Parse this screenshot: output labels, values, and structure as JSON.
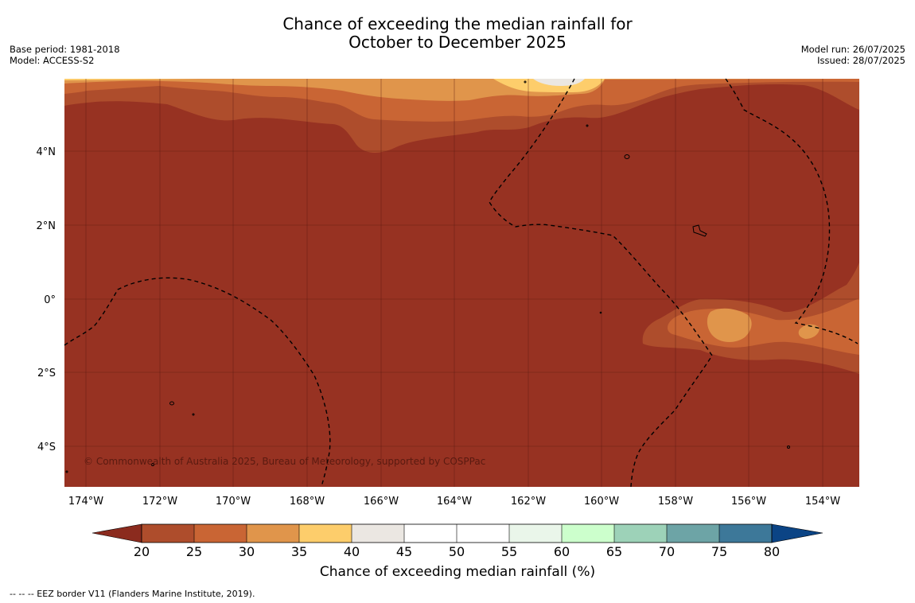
{
  "title": {
    "line1": "Chance of exceeding the median rainfall for",
    "line2": "October to December 2025"
  },
  "meta_left": {
    "base_period": "Base period: 1981-2018",
    "model": "Model: ACCESS-S2"
  },
  "meta_right": {
    "model_run": "Model run: 26/07/2025",
    "issued": "Issued: 28/07/2025"
  },
  "map": {
    "lat_labels": [
      "4°N",
      "2°N",
      "0°",
      "2°S",
      "4°S"
    ],
    "lon_labels": [
      "174°W",
      "172°W",
      "170°W",
      "168°W",
      "166°W",
      "164°W",
      "162°W",
      "160°W",
      "158°W",
      "156°W",
      "154°W"
    ],
    "copyright": "© Commonwealth of Australia 2025, Bureau of Meteorology, supported by COSPPac",
    "colors": {
      "below_20": "#973222",
      "20_25": "#ae4d2c",
      "25_30": "#c96534",
      "30_35": "#e0954b",
      "35_40": "#fdcd6b",
      "40_45": "#ebe7e2"
    }
  },
  "colorbar": {
    "ticks": [
      "20",
      "25",
      "30",
      "35",
      "40",
      "45",
      "50",
      "55",
      "60",
      "65",
      "70",
      "75",
      "80"
    ],
    "colors": [
      "#ae4d2c",
      "#c96534",
      "#e0954b",
      "#fdcd6b",
      "#ebe7e2",
      "#ffffff",
      "#ffffff",
      "#eaf6ea",
      "#ccffcc",
      "#9dd2b8",
      "#6da4a6",
      "#3d7899"
    ],
    "under_color": "#8b2b1e",
    "over_color": "#0b4485",
    "title": "Chance of exceeding median rainfall (%)"
  },
  "footer": "--  --  -- EEZ border V11 (Flanders Marine Institute, 2019)."
}
